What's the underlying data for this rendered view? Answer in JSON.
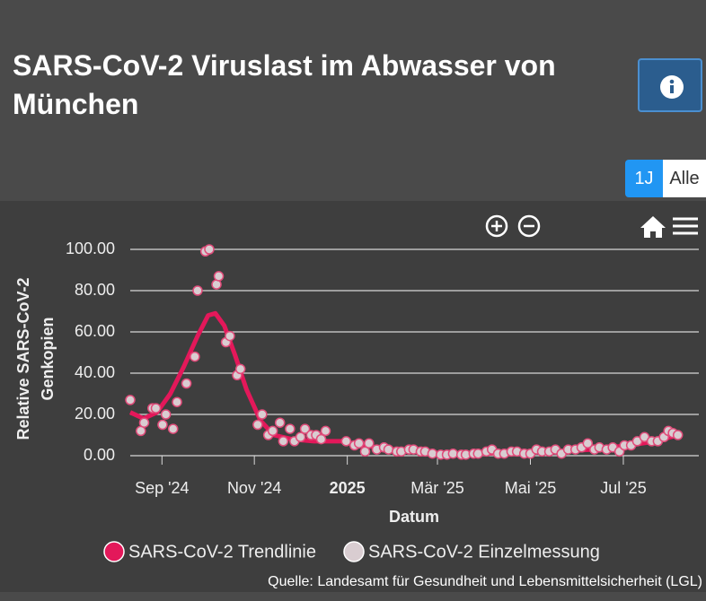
{
  "header": {
    "title": "SARS-CoV-2 Viruslast im Abwasser von München",
    "buttons": [
      "1J",
      "Alle"
    ]
  },
  "chart_data": {
    "type": "scatter",
    "ylabel": [
      "Relative SARS-CoV-2",
      "Genkopien"
    ],
    "xlabel": "Datum",
    "xlim": [
      2024.61,
      2025.63
    ],
    "xticks": [
      {
        "value": 2024.667,
        "label": "Sep '24"
      },
      {
        "value": 2024.833,
        "label": "Nov '24"
      },
      2025,
      {
        "value": 2025.162,
        "label": "Mär '25"
      },
      {
        "value": 2025.329,
        "label": "Mai '25"
      },
      {
        "value": 2025.496,
        "label": "Jul '25"
      }
    ],
    "ylim": [
      0,
      100
    ],
    "yticks": [
      {
        "value": 0,
        "label": "0.00"
      },
      {
        "value": 20,
        "label": "20.00"
      },
      {
        "value": 40,
        "label": "40.00"
      },
      {
        "value": 60,
        "label": "60.00"
      },
      {
        "value": 80,
        "label": "80.00"
      },
      {
        "value": 100,
        "label": "100.00"
      }
    ],
    "grid": true,
    "series": [
      {
        "name": "SARS-CoV-2 Trendlinie",
        "type": "line",
        "color": "#e3185a",
        "x": [
          2024.61,
          2024.634,
          2024.658,
          2024.682,
          2024.706,
          2024.731,
          2024.75,
          2024.763,
          2024.779,
          2024.798,
          2024.819,
          2024.844,
          2024.868,
          2024.9,
          2024.94,
          2024.989,
          2025.053,
          2025.118,
          2025.182,
          2025.247,
          2025.311,
          2025.376,
          2025.44,
          2025.505,
          2025.555,
          2025.594
        ],
        "values": [
          21,
          18,
          21,
          30,
          43,
          58,
          68,
          69,
          63,
          49,
          32,
          17,
          10,
          8,
          7,
          7,
          4,
          2,
          1,
          1,
          2,
          2,
          3,
          5,
          7,
          10
        ]
      },
      {
        "name": "SARS-CoV-2 Einzelmessung",
        "type": "scatter",
        "color": "#d9cdd1",
        "x": [
          2024.61,
          2024.629,
          2024.635,
          2024.65,
          2024.656,
          2024.668,
          2024.674,
          2024.687,
          2024.694,
          2024.711,
          2024.726,
          2024.731,
          2024.745,
          2024.752,
          2024.765,
          2024.769,
          2024.782,
          2024.789,
          2024.802,
          2024.808,
          2024.839,
          2024.847,
          2024.858,
          2024.866,
          2024.879,
          2024.885,
          2024.897,
          2024.905,
          2024.916,
          2024.924,
          2024.935,
          2024.944,
          2024.953,
          2024.961,
          2024.998,
          2025.013,
          2025.021,
          2025.032,
          2025.039,
          2025.053,
          2025.066,
          2025.074,
          2025.089,
          2025.097,
          2025.111,
          2025.119,
          2025.132,
          2025.14,
          2025.153,
          2025.168,
          2025.179,
          2025.19,
          2025.205,
          2025.213,
          2025.227,
          2025.235,
          2025.25,
          2025.26,
          2025.271,
          2025.282,
          2025.295,
          2025.305,
          2025.318,
          2025.329,
          2025.34,
          2025.35,
          2025.363,
          2025.374,
          2025.385,
          2025.397,
          2025.41,
          2025.421,
          2025.432,
          2025.444,
          2025.453,
          2025.466,
          2025.477,
          2025.489,
          2025.498,
          2025.51,
          2025.521,
          2025.534,
          2025.547,
          2025.558,
          2025.569,
          2025.577,
          2025.585,
          2025.594
        ],
        "values": [
          27,
          12,
          16,
          23,
          23,
          15,
          20,
          13,
          26,
          35,
          48,
          80,
          99,
          100,
          83,
          87,
          55,
          58,
          39,
          42,
          15,
          20,
          10,
          12,
          16,
          7,
          13,
          7,
          9,
          13,
          10,
          10,
          8,
          12,
          7,
          5,
          6,
          2,
          6,
          3,
          4,
          3,
          2,
          2,
          3,
          3,
          2,
          2,
          1,
          0.5,
          0.5,
          1,
          0.5,
          0.5,
          1,
          1,
          2,
          3,
          1,
          1,
          2,
          2,
          1,
          1,
          3,
          2,
          2,
          3,
          1,
          3,
          3,
          4,
          6,
          3,
          4,
          3,
          4,
          2,
          5,
          5,
          7,
          9,
          7,
          7,
          9,
          12,
          11,
          10
        ]
      }
    ]
  },
  "source": "Quelle: Landesamt für Gesundheit und Lebensmittelsicherheit (LGL)"
}
